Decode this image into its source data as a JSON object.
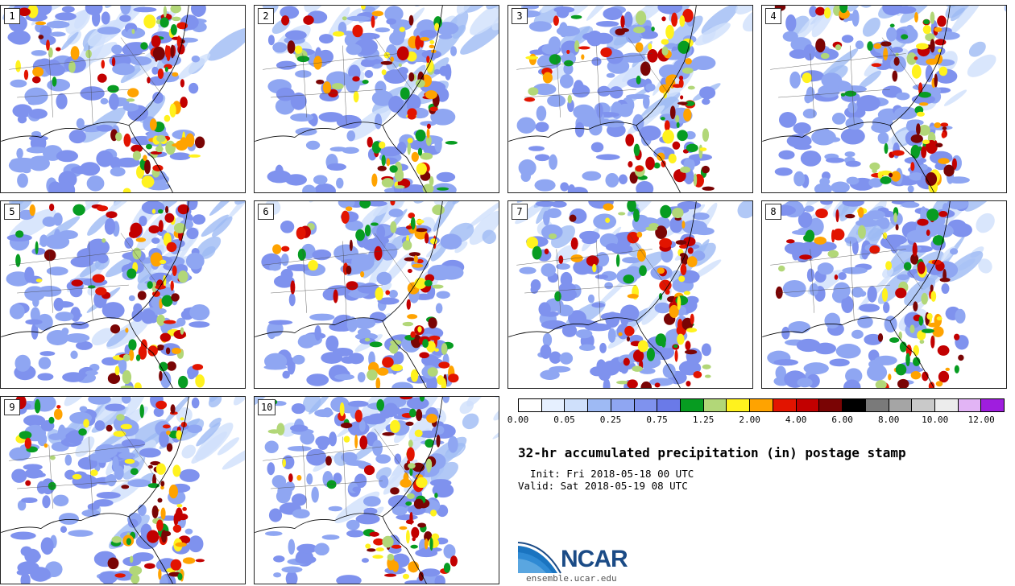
{
  "title": "32-hr accumulated precipitation (in) postage stamp",
  "init_text": "  Init: Fri 2018-05-18 00 UTC",
  "valid_text": "Valid: Sat 2018-05-19 08 UTC",
  "logo_text": "NCAR",
  "site": "ensemble.ucar.edu",
  "members": [
    {
      "label": "1"
    },
    {
      "label": "2"
    },
    {
      "label": "3"
    },
    {
      "label": "4"
    },
    {
      "label": "5"
    },
    {
      "label": "6"
    },
    {
      "label": "7"
    },
    {
      "label": "8"
    },
    {
      "label": "9"
    },
    {
      "label": "10"
    }
  ],
  "colorbar": {
    "colors": [
      "#ffffff",
      "#e6f0ff",
      "#cfe0fb",
      "#9ebaf4",
      "#8fa6f2",
      "#7f92ee",
      "#6a7ae8",
      "#079c21",
      "#b2d778",
      "#fff21e",
      "#ffa300",
      "#e21400",
      "#c20000",
      "#7a0404",
      "#000000",
      "#7a7a7a",
      "#a5a5a5",
      "#c9c9c9",
      "#ececec",
      "#e2b4f5",
      "#9f1ede"
    ],
    "tick_labels": [
      "0.00",
      "0.05",
      "0.25",
      "0.75",
      "1.25",
      "2.00",
      "4.00",
      "6.00",
      "8.00",
      "10.00",
      "12.00"
    ]
  }
}
